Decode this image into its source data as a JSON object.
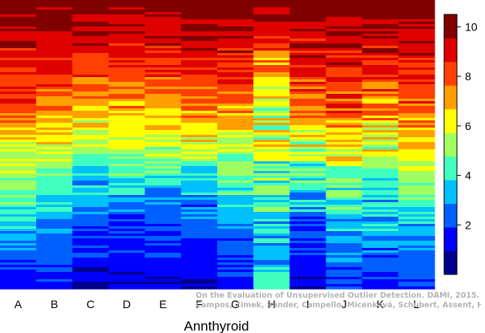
{
  "chart_data": {
    "type": "heatmap",
    "title": "",
    "xlabel": "Annthyroid",
    "ylabel": "",
    "columns": [
      "A",
      "B",
      "C",
      "D",
      "E",
      "F",
      "G",
      "H",
      "I",
      "J",
      "K",
      "L"
    ],
    "colorbar": {
      "range": [
        0,
        10.5
      ],
      "ticks": [
        2,
        4,
        6,
        8,
        10
      ],
      "levels": [
        "#00008f",
        "#0000ff",
        "#0060ff",
        "#00c0ff",
        "#40ffbf",
        "#9fff60",
        "#ffff00",
        "#ffa000",
        "#ff4000",
        "#df0000",
        "#800000"
      ]
    },
    "column_profiles": {
      "A": [
        10,
        9.5,
        9,
        8.5,
        8,
        7,
        6,
        5,
        4,
        3,
        2,
        1.5
      ],
      "B": [
        10,
        9.5,
        9,
        8.5,
        7.5,
        6.5,
        5.5,
        4.5,
        3.5,
        2.5,
        2,
        1.5
      ],
      "C": [
        10,
        9.5,
        9,
        8,
        7,
        6,
        4.5,
        3.5,
        2.5,
        2,
        1.5,
        1
      ],
      "D": [
        10,
        9.5,
        9,
        8,
        7,
        6,
        5,
        3.5,
        2.5,
        2,
        1.5,
        1
      ],
      "E": [
        10,
        9.5,
        9,
        8,
        7,
        6,
        5,
        3.5,
        2.5,
        2,
        1.5,
        1
      ],
      "F": [
        10,
        9.5,
        9,
        8.5,
        7.5,
        6.5,
        5,
        3.5,
        2.5,
        2,
        1.5,
        1
      ],
      "G": [
        10,
        9.5,
        9,
        8.5,
        7.5,
        6.5,
        5.5,
        4.5,
        3.5,
        2.5,
        2,
        1.5
      ],
      "H": [
        10,
        9,
        8,
        7,
        6,
        5.5,
        5,
        4.5,
        4,
        3.5,
        3.5,
        4.5
      ],
      "I": [
        10,
        9.5,
        9,
        8.5,
        7.5,
        6.5,
        5,
        4,
        3,
        2,
        1.5,
        1
      ],
      "J": [
        10,
        9.5,
        9,
        8.5,
        8,
        7,
        6,
        5,
        4,
        3,
        2.5,
        2
      ],
      "K": [
        10,
        9.5,
        9,
        8.5,
        7.5,
        6.5,
        5.5,
        4.5,
        3.5,
        3,
        2,
        1.5
      ],
      "L": [
        10,
        9.5,
        9,
        8.5,
        8,
        7,
        6,
        5,
        4,
        3,
        2.5,
        2
      ]
    },
    "row_count": 120,
    "legend": "right"
  },
  "source_note": {
    "line1": "On the Evaluation of Unsupervised Outlier Detection. DAMI, 2015.",
    "line2": "Campos, Zimek, Sander, Campello, Micenková, Schubert, Assent, Houle"
  }
}
